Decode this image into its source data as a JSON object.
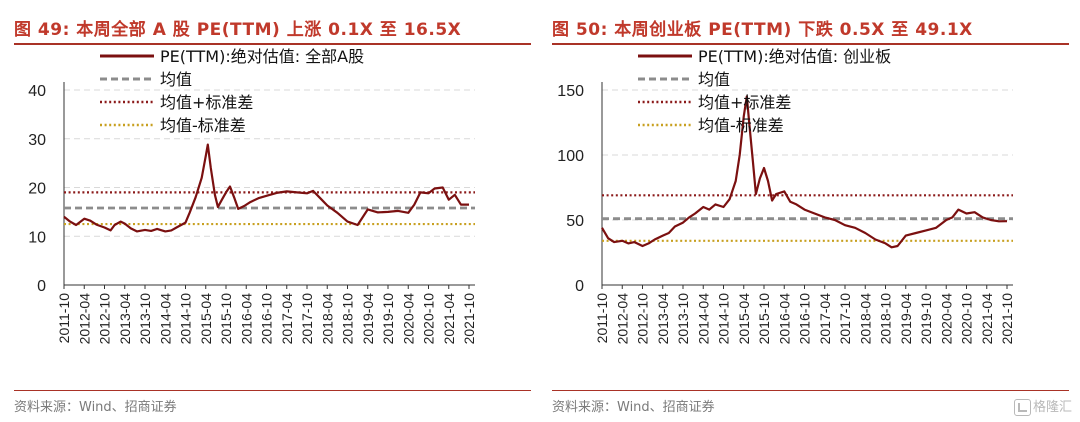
{
  "charts": [
    {
      "title": "图 49:  本周全部 A 股 PE(TTM) 上涨 0.1X 至 16.5X",
      "source": "资料来源：Wind、招商证券"
    },
    {
      "title": "图 50:  本周创业板 PE(TTM) 下跌 0.5X 至 49.1X",
      "source": "资料来源：Wind、招商证券"
    }
  ],
  "watermark": "格隆汇",
  "chart_data": [
    {
      "type": "line",
      "title": "图 49:  本周全部 A 股 PE(TTM) 上涨 0.1X 至 16.5X",
      "ylim": [
        0,
        40
      ],
      "yticks": [
        "0",
        "10",
        "20",
        "30",
        "40"
      ],
      "grid": true,
      "legend_position": "top-left",
      "x_categories": [
        "2011-10",
        "2012-04",
        "2012-10",
        "2013-04",
        "2013-10",
        "2014-04",
        "2014-10",
        "2015-04",
        "2015-10",
        "2016-04",
        "2016-10",
        "2017-04",
        "2017-10",
        "2018-04",
        "2018-10",
        "2019-04",
        "2019-10",
        "2020-04",
        "2020-10",
        "2021-04",
        "2021-10"
      ],
      "series": [
        {
          "name": "PE(TTM):绝对估值: 全部A股",
          "style": "solid",
          "color": "#7b1010",
          "points": [
            [
              0,
              14.0
            ],
            [
              0.3,
              13.0
            ],
            [
              0.6,
              12.3
            ],
            [
              1,
              13.6
            ],
            [
              1.3,
              13.2
            ],
            [
              1.6,
              12.4
            ],
            [
              2,
              11.8
            ],
            [
              2.3,
              11.2
            ],
            [
              2.5,
              12.3
            ],
            [
              2.8,
              13.0
            ],
            [
              3,
              12.6
            ],
            [
              3.3,
              11.6
            ],
            [
              3.6,
              11.0
            ],
            [
              4,
              11.3
            ],
            [
              4.3,
              11.1
            ],
            [
              4.6,
              11.5
            ],
            [
              5,
              11.0
            ],
            [
              5.3,
              11.2
            ],
            [
              5.6,
              11.9
            ],
            [
              6,
              12.8
            ],
            [
              6.2,
              14.8
            ],
            [
              6.5,
              18.0
            ],
            [
              6.8,
              22.0
            ],
            [
              7,
              26.5
            ],
            [
              7.1,
              28.8
            ],
            [
              7.25,
              24.0
            ],
            [
              7.45,
              18.5
            ],
            [
              7.6,
              16.0
            ],
            [
              7.8,
              17.5
            ],
            [
              8,
              19.0
            ],
            [
              8.2,
              20.2
            ],
            [
              8.4,
              18.0
            ],
            [
              8.6,
              15.6
            ],
            [
              8.9,
              16.2
            ],
            [
              9.2,
              17.0
            ],
            [
              9.6,
              17.8
            ],
            [
              10,
              18.3
            ],
            [
              10.5,
              18.9
            ],
            [
              11,
              19.2
            ],
            [
              11.5,
              19.0
            ],
            [
              12,
              18.8
            ],
            [
              12.3,
              19.3
            ],
            [
              12.7,
              17.6
            ],
            [
              13,
              16.3
            ],
            [
              13.5,
              14.8
            ],
            [
              14,
              13.0
            ],
            [
              14.5,
              12.3
            ],
            [
              15,
              15.5
            ],
            [
              15.5,
              14.9
            ],
            [
              16,
              15.0
            ],
            [
              16.5,
              15.2
            ],
            [
              17,
              14.8
            ],
            [
              17.3,
              16.5
            ],
            [
              17.6,
              19.0
            ],
            [
              18,
              18.8
            ],
            [
              18.3,
              19.8
            ],
            [
              18.7,
              20.0
            ],
            [
              19,
              17.5
            ],
            [
              19.3,
              18.5
            ],
            [
              19.6,
              16.5
            ],
            [
              20,
              16.5
            ]
          ]
        },
        {
          "name": "均值",
          "style": "dashed",
          "color": "#8c8c8c",
          "value": 15.8
        },
        {
          "name": "均值+标准差",
          "style": "dotted",
          "color": "#8b1a1a",
          "value": 19.0
        },
        {
          "name": "均值-标准差",
          "style": "dotted",
          "color": "#c8a020",
          "value": 12.5
        }
      ]
    },
    {
      "type": "line",
      "title": "图 50:  本周创业板 PE(TTM) 下跌 0.5X 至 49.1X",
      "ylim": [
        0,
        150
      ],
      "yticks": [
        "0",
        "50",
        "100",
        "150"
      ],
      "grid": true,
      "legend_position": "top-left",
      "x_categories": [
        "2011-10",
        "2012-04",
        "2012-10",
        "2013-04",
        "2013-10",
        "2014-04",
        "2014-10",
        "2015-04",
        "2015-10",
        "2016-04",
        "2016-10",
        "2017-04",
        "2017-10",
        "2018-04",
        "2018-10",
        "2019-04",
        "2019-10",
        "2020-04",
        "2020-10",
        "2021-04",
        "2021-10"
      ],
      "series": [
        {
          "name": "PE(TTM):绝对估值: 创业板",
          "style": "solid",
          "color": "#7b1010",
          "points": [
            [
              0,
              44
            ],
            [
              0.3,
              36
            ],
            [
              0.6,
              33
            ],
            [
              1,
              34
            ],
            [
              1.3,
              32
            ],
            [
              1.6,
              33
            ],
            [
              2,
              30
            ],
            [
              2.3,
              32
            ],
            [
              2.6,
              35
            ],
            [
              3,
              38
            ],
            [
              3.3,
              40
            ],
            [
              3.6,
              45
            ],
            [
              4,
              48
            ],
            [
              4.3,
              52
            ],
            [
              4.6,
              55
            ],
            [
              5,
              60
            ],
            [
              5.3,
              58
            ],
            [
              5.6,
              62
            ],
            [
              6,
              60
            ],
            [
              6.3,
              66
            ],
            [
              6.6,
              80
            ],
            [
              6.8,
              100
            ],
            [
              7,
              130
            ],
            [
              7.15,
              145
            ],
            [
              7.3,
              120
            ],
            [
              7.45,
              95
            ],
            [
              7.6,
              70
            ],
            [
              7.8,
              82
            ],
            [
              8,
              90
            ],
            [
              8.2,
              80
            ],
            [
              8.4,
              65
            ],
            [
              8.6,
              70
            ],
            [
              9,
              72
            ],
            [
              9.3,
              64
            ],
            [
              9.6,
              62
            ],
            [
              10,
              58
            ],
            [
              10.5,
              55
            ],
            [
              11,
              52
            ],
            [
              11.5,
              50
            ],
            [
              12,
              46
            ],
            [
              12.5,
              44
            ],
            [
              13,
              40
            ],
            [
              13.5,
              35
            ],
            [
              14,
              32
            ],
            [
              14.3,
              29
            ],
            [
              14.6,
              30
            ],
            [
              15,
              38
            ],
            [
              15.5,
              40
            ],
            [
              16,
              42
            ],
            [
              16.5,
              44
            ],
            [
              17,
              50
            ],
            [
              17.3,
              52
            ],
            [
              17.6,
              58
            ],
            [
              18,
              55
            ],
            [
              18.4,
              56
            ],
            [
              18.8,
              52
            ],
            [
              19.2,
              50
            ],
            [
              19.6,
              49
            ],
            [
              20,
              49.1
            ]
          ]
        },
        {
          "name": "均值",
          "style": "dashed",
          "color": "#8c8c8c",
          "value": 51
        },
        {
          "name": "均值+标准差",
          "style": "dotted",
          "color": "#8b1a1a",
          "value": 69
        },
        {
          "name": "均值-标准差",
          "style": "dotted",
          "color": "#c8a020",
          "value": 34
        }
      ]
    }
  ]
}
